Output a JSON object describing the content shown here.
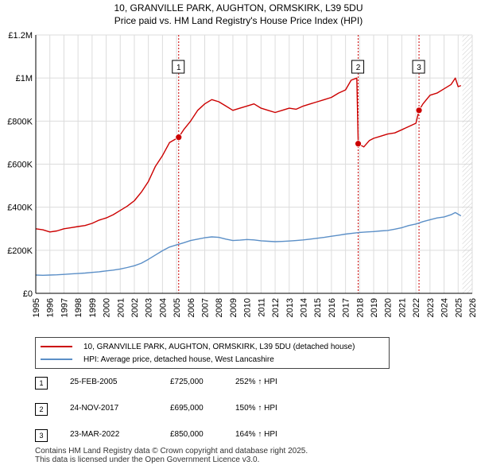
{
  "title_line1": "10, GRANVILLE PARK, AUGHTON, ORMSKIRK, L39 5DU",
  "title_line2": "Price paid vs. HM Land Registry's House Price Index (HPI)",
  "colors": {
    "property": "#cc0000",
    "hpi": "#5b8fc7",
    "grid": "#dcdcdc",
    "marker_line": "#cc0000"
  },
  "chart_data": {
    "type": "line",
    "title": "Price paid vs. HM Land Registry's House Price Index (HPI)",
    "xlabel": "",
    "ylabel": "",
    "xlim": [
      1995,
      2026
    ],
    "ylim": [
      0,
      1200000
    ],
    "y_ticks": [
      0,
      200000,
      400000,
      600000,
      800000,
      1000000,
      1200000
    ],
    "y_tick_labels": [
      "£0",
      "£200K",
      "£400K",
      "£600K",
      "£800K",
      "£1M",
      "£1.2M"
    ],
    "x_ticks": [
      "1995",
      "1996",
      "1997",
      "1998",
      "1999",
      "2000",
      "2001",
      "2002",
      "2003",
      "2004",
      "2005",
      "2006",
      "2007",
      "2008",
      "2009",
      "2010",
      "2011",
      "2012",
      "2013",
      "2014",
      "2015",
      "2016",
      "2017",
      "2018",
      "2019",
      "2020",
      "2021",
      "2022",
      "2023",
      "2024",
      "2025",
      "2026"
    ],
    "grid": true,
    "series": [
      {
        "name": "10, GRANVILLE PARK, AUGHTON, ORMSKIRK, L39 5DU (detached house)",
        "x": [
          1995.0,
          1995.5,
          1996.0,
          1996.5,
          1997.0,
          1997.5,
          1998.0,
          1998.5,
          1999.0,
          1999.5,
          2000.0,
          2000.5,
          2001.0,
          2001.5,
          2002.0,
          2002.5,
          2003.0,
          2003.5,
          2004.0,
          2004.5,
          2005.15,
          2005.5,
          2006.0,
          2006.5,
          2007.0,
          2007.5,
          2008.0,
          2008.5,
          2009.0,
          2009.5,
          2010.0,
          2010.5,
          2011.0,
          2011.5,
          2012.0,
          2012.5,
          2013.0,
          2013.5,
          2014.0,
          2014.5,
          2015.0,
          2015.5,
          2016.0,
          2016.5,
          2017.0,
          2017.4,
          2017.8,
          2017.9,
          2018.3,
          2018.7,
          2019.0,
          2019.5,
          2020.0,
          2020.5,
          2021.0,
          2021.5,
          2022.0,
          2022.22,
          2022.5,
          2023.0,
          2023.5,
          2024.0,
          2024.5,
          2024.8,
          2025.0,
          2025.2
        ],
        "values": [
          300000,
          295000,
          285000,
          290000,
          300000,
          305000,
          310000,
          315000,
          325000,
          340000,
          350000,
          365000,
          385000,
          405000,
          430000,
          470000,
          520000,
          590000,
          640000,
          700000,
          725000,
          760000,
          800000,
          850000,
          880000,
          900000,
          890000,
          870000,
          850000,
          860000,
          870000,
          880000,
          860000,
          850000,
          840000,
          850000,
          860000,
          855000,
          870000,
          880000,
          890000,
          900000,
          910000,
          930000,
          945000,
          990000,
          1000000,
          695000,
          680000,
          710000,
          720000,
          730000,
          740000,
          745000,
          760000,
          775000,
          790000,
          850000,
          880000,
          920000,
          930000,
          950000,
          970000,
          1000000,
          960000,
          965000
        ]
      },
      {
        "name": "HPI: Average price, detached house, West Lancashire",
        "x": [
          1995.0,
          1995.5,
          1996.0,
          1996.5,
          1997.0,
          1997.5,
          1998.0,
          1998.5,
          1999.0,
          1999.5,
          2000.0,
          2000.5,
          2001.0,
          2001.5,
          2002.0,
          2002.5,
          2003.0,
          2003.5,
          2004.0,
          2004.5,
          2005.0,
          2005.5,
          2006.0,
          2006.5,
          2007.0,
          2007.5,
          2008.0,
          2008.5,
          2009.0,
          2009.5,
          2010.0,
          2010.5,
          2011.0,
          2011.5,
          2012.0,
          2012.5,
          2013.0,
          2013.5,
          2014.0,
          2014.5,
          2015.0,
          2015.5,
          2016.0,
          2016.5,
          2017.0,
          2017.5,
          2018.0,
          2018.5,
          2019.0,
          2019.5,
          2020.0,
          2020.5,
          2021.0,
          2021.5,
          2022.0,
          2022.5,
          2023.0,
          2023.5,
          2024.0,
          2024.5,
          2024.8,
          2025.2
        ],
        "values": [
          85000,
          84000,
          85000,
          86000,
          88000,
          90000,
          92000,
          94000,
          97000,
          100000,
          104000,
          108000,
          113000,
          120000,
          128000,
          140000,
          158000,
          178000,
          198000,
          215000,
          225000,
          235000,
          245000,
          252000,
          258000,
          262000,
          260000,
          252000,
          245000,
          247000,
          250000,
          248000,
          244000,
          242000,
          240000,
          241000,
          243000,
          245000,
          248000,
          252000,
          256000,
          260000,
          265000,
          270000,
          275000,
          279000,
          283000,
          285000,
          287000,
          290000,
          292000,
          298000,
          305000,
          315000,
          322000,
          333000,
          342000,
          350000,
          355000,
          365000,
          375000,
          360000
        ]
      }
    ],
    "sales": [
      {
        "label": "1",
        "x": 2005.15,
        "value": 725000
      },
      {
        "label": "2",
        "x": 2017.9,
        "value": 695000
      },
      {
        "label": "3",
        "x": 2022.22,
        "value": 850000
      }
    ]
  },
  "legend": {
    "items": [
      "10, GRANVILLE PARK, AUGHTON, ORMSKIRK, L39 5DU (detached house)",
      "HPI: Average price, detached house, West Lancashire"
    ]
  },
  "sales_table": [
    {
      "num": "1",
      "date": "25-FEB-2005",
      "price": "£725,000",
      "hpi": "252% ↑ HPI"
    },
    {
      "num": "2",
      "date": "24-NOV-2017",
      "price": "£695,000",
      "hpi": "150% ↑ HPI"
    },
    {
      "num": "3",
      "date": "23-MAR-2022",
      "price": "£850,000",
      "hpi": "164% ↑ HPI"
    }
  ],
  "footer": {
    "line1": "Contains HM Land Registry data © Crown copyright and database right 2025.",
    "line2": "This data is licensed under the Open Government Licence v3.0."
  }
}
